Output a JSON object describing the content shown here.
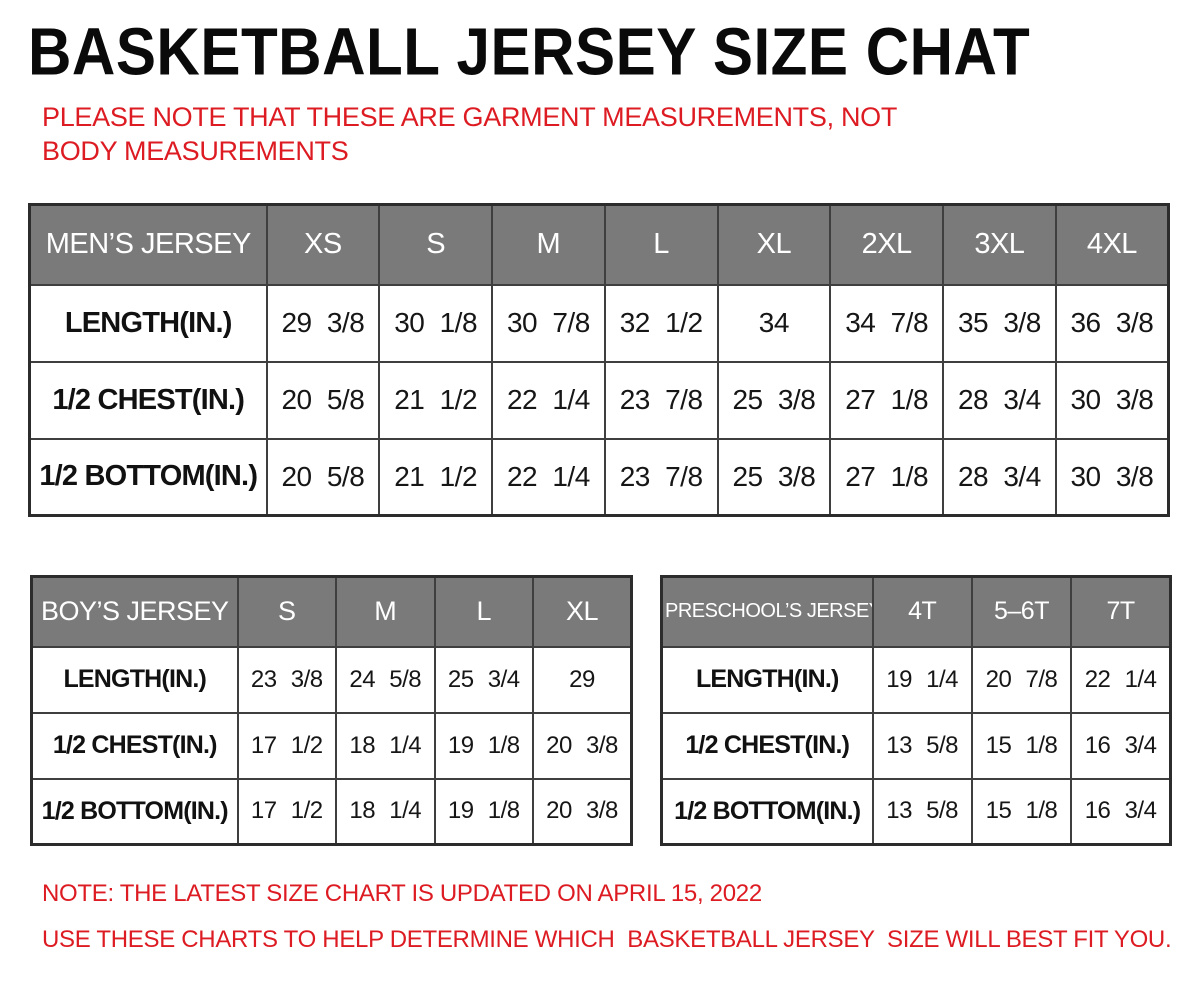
{
  "title": "BASKETBALL JERSEY SIZE CHAT",
  "note_top": "PLEASE NOTE THAT THESE ARE GARMENT MEASUREMENTS, NOT BODY MEASUREMENTS",
  "notes_bottom": [
    "NOTE: THE LATEST SIZE CHART IS UPDATED ON APRIL 15, 2022",
    "USE THESE CHARTS TO HELP DETERMINE WHICH  BASKETBALL JERSEY  SIZE WILL BEST FIT YOU."
  ],
  "colors": {
    "note_red": "#dd1b22",
    "header_gray": "#7a7a7a",
    "header_text": "#ffffff",
    "border": "#3f3f3f",
    "text": "#111111",
    "background": "#ffffff"
  },
  "tables": {
    "mens": {
      "header": [
        "MEN’S JERSEY",
        "XS",
        "S",
        "M",
        "L",
        "XL",
        "2XL",
        "3XL",
        "4XL"
      ],
      "rows": [
        {
          "label": "LENGTH(IN.)",
          "values": [
            "29 3/8",
            "30 1/8",
            "30 7/8",
            "32 1/2",
            "34",
            "34 7/8",
            "35 3/8",
            "36 3/8"
          ]
        },
        {
          "label": "1/2 CHEST(IN.)",
          "values": [
            "20 5/8",
            "21 1/2",
            "22 1/4",
            "23 7/8",
            "25 3/8",
            "27 1/8",
            "28 3/4",
            "30 3/8"
          ]
        },
        {
          "label": "1/2 BOTTOM(IN.)",
          "values": [
            "20 5/8",
            "21 1/2",
            "22 1/4",
            "23 7/8",
            "25 3/8",
            "27 1/8",
            "28 3/4",
            "30 3/8"
          ]
        }
      ]
    },
    "boys": {
      "header": [
        "BOY’S JERSEY",
        "S",
        "M",
        "L",
        "XL"
      ],
      "rows": [
        {
          "label": "LENGTH(IN.)",
          "values": [
            "23 3/8",
            "24 5/8",
            "25 3/4",
            "29"
          ]
        },
        {
          "label": "1/2 CHEST(IN.)",
          "values": [
            "17 1/2",
            "18 1/4",
            "19 1/8",
            "20 3/8"
          ]
        },
        {
          "label": "1/2 BOTTOM(IN.)",
          "values": [
            "17 1/2",
            "18 1/4",
            "19 1/8",
            "20 3/8"
          ]
        }
      ]
    },
    "preschool": {
      "header": [
        "PRESCHOOL’S JERSEY",
        "4T",
        "5–6T",
        "7T"
      ],
      "rows": [
        {
          "label": "LENGTH(IN.)",
          "values": [
            "19 1/4",
            "20 7/8",
            "22 1/4"
          ]
        },
        {
          "label": "1/2 CHEST(IN.)",
          "values": [
            "13 5/8",
            "15 1/8",
            "16 3/4"
          ]
        },
        {
          "label": "1/2 BOTTOM(IN.)",
          "values": [
            "13 5/8",
            "15 1/8",
            "16 3/4"
          ]
        }
      ]
    }
  }
}
